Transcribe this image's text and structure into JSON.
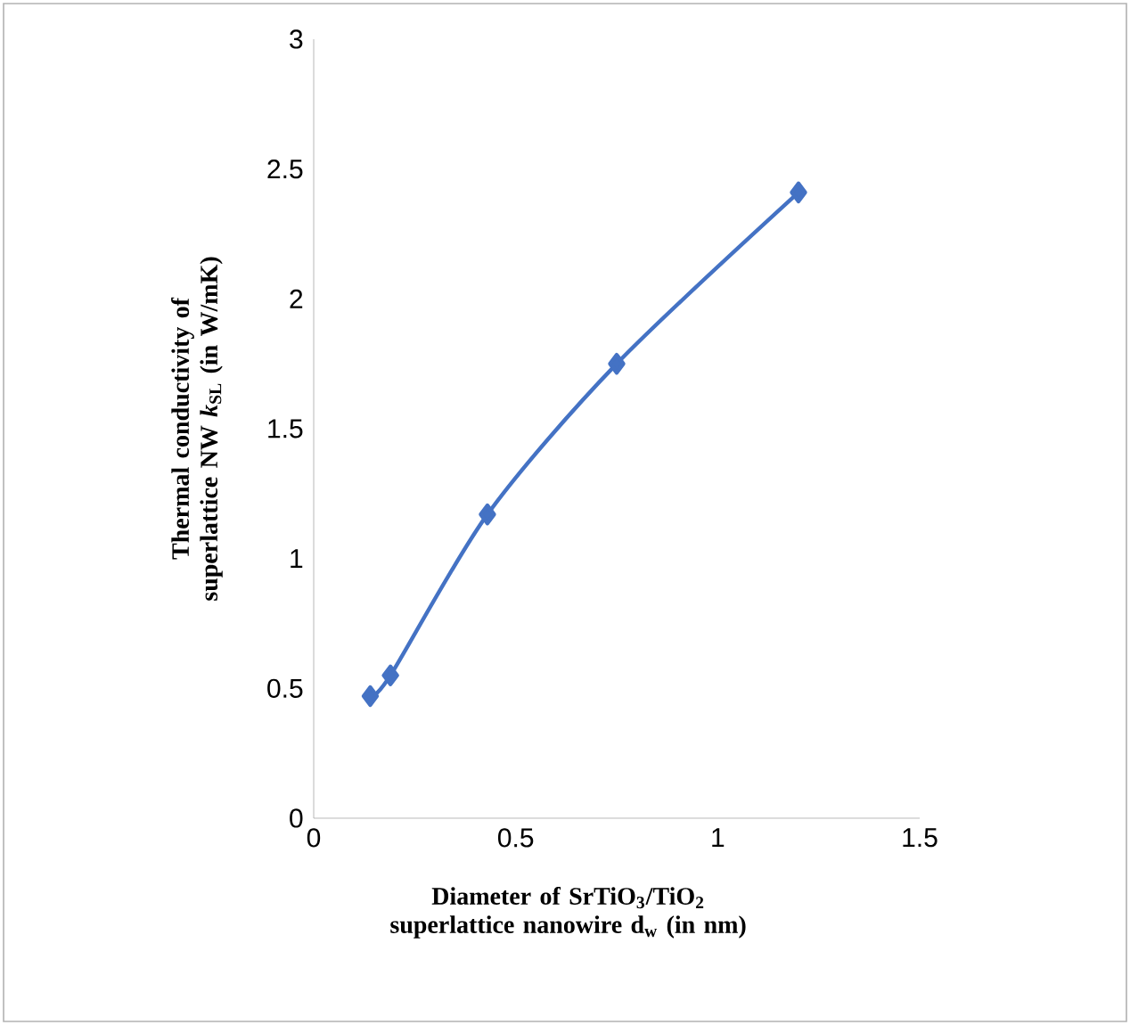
{
  "chart_data": {
    "type": "line",
    "xlabel": "Diameter of SrTiO$_{3}$/TiO$_{2}$ superlattice nanowire d$_{w}$ (in nm)",
    "ylabel": "Thermal conductivity of superlattice NW *k*$_{SL}$ (in W/mK)",
    "x": [
      0.14,
      0.19,
      0.43,
      0.75,
      1.2
    ],
    "series": [
      {
        "color": "#4472c4",
        "values": [
          0.47,
          0.55,
          1.17,
          1.75,
          2.41
        ]
      }
    ],
    "xlim": [
      0,
      1.5
    ],
    "xticks": [
      0,
      0.5,
      1,
      1.5
    ],
    "ylim": [
      0,
      3
    ],
    "yticks": [
      0,
      0.5,
      1,
      1.5,
      2,
      2.5,
      3
    ],
    "grid": false,
    "marker": "diamond",
    "line_style": "solid"
  }
}
